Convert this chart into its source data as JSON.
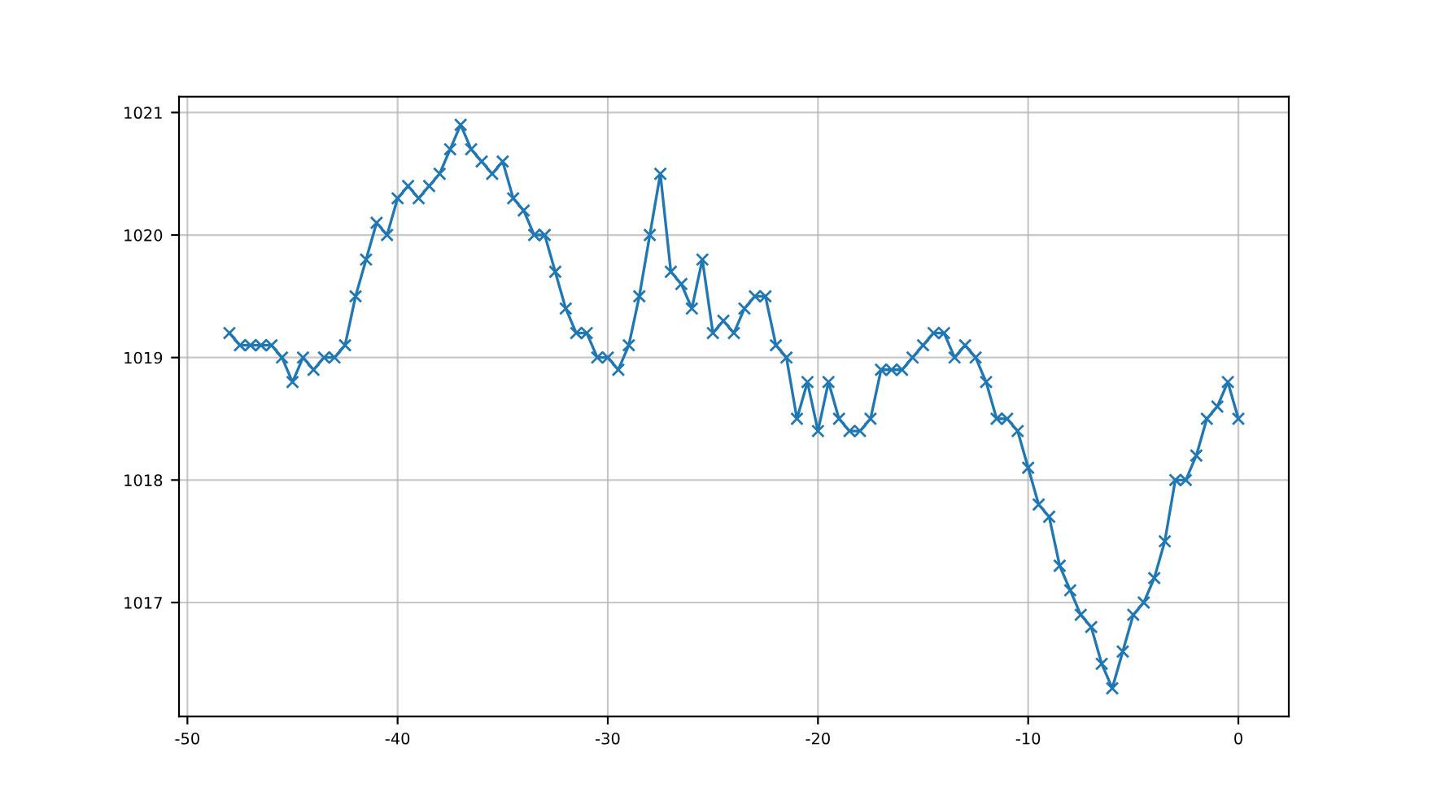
{
  "chart_data": {
    "type": "line",
    "x": [
      -48,
      -47.5,
      -47,
      -46.5,
      -46,
      -45.5,
      -45,
      -44.5,
      -44,
      -43.5,
      -43,
      -42.5,
      -42,
      -41.5,
      -41,
      -40.5,
      -40,
      -39.5,
      -39,
      -38.5,
      -38,
      -37.5,
      -37,
      -36.5,
      -36,
      -35.5,
      -35,
      -34.5,
      -34,
      -33.5,
      -33,
      -32.5,
      -32,
      -31.5,
      -31,
      -30.5,
      -30,
      -29.5,
      -29,
      -28.5,
      -28,
      -27.5,
      -27,
      -26.5,
      -26,
      -25.5,
      -25,
      -24.5,
      -24,
      -23.5,
      -23,
      -22.5,
      -22,
      -21.5,
      -21,
      -20.5,
      -20,
      -19.5,
      -19,
      -18.5,
      -18,
      -17.5,
      -17,
      -16.5,
      -16,
      -15.5,
      -15,
      -14.5,
      -14,
      -13.5,
      -13,
      -12.5,
      -12,
      -11.5,
      -11,
      -10.5,
      -10,
      -9.5,
      -9,
      -8.5,
      -8,
      -7.5,
      -7,
      -6.5,
      -6,
      -5.5,
      -5,
      -4.5,
      -4,
      -3.5,
      -3,
      -2.5,
      -2,
      -1.5,
      -1,
      -0.5,
      0
    ],
    "series": [
      {
        "color": "#1f77b4",
        "values": [
          1019.2,
          1019.1,
          1019.1,
          1019.1,
          1019.1,
          1019.0,
          1018.8,
          1019.0,
          1018.9,
          1019.0,
          1019.0,
          1019.1,
          1019.5,
          1019.8,
          1020.1,
          1020.0,
          1020.3,
          1020.4,
          1020.3,
          1020.4,
          1020.5,
          1020.7,
          1020.9,
          1020.7,
          1020.6,
          1020.5,
          1020.6,
          1020.3,
          1020.2,
          1020.0,
          1020.0,
          1019.7,
          1019.4,
          1019.2,
          1019.2,
          1019.0,
          1019.0,
          1018.9,
          1019.1,
          1019.5,
          1020.0,
          1020.5,
          1019.7,
          1019.6,
          1019.4,
          1019.8,
          1019.2,
          1019.3,
          1019.2,
          1019.4,
          1019.5,
          1019.5,
          1019.1,
          1019.0,
          1018.5,
          1018.8,
          1018.4,
          1018.8,
          1018.5,
          1018.4,
          1018.4,
          1018.5,
          1018.9,
          1018.9,
          1018.9,
          1019.0,
          1019.1,
          1019.2,
          1019.2,
          1019.0,
          1019.1,
          1019.0,
          1018.8,
          1018.5,
          1018.5,
          1018.4,
          1018.1,
          1017.8,
          1017.7,
          1017.3,
          1017.1,
          1016.9,
          1016.8,
          1016.5,
          1016.3,
          1016.6,
          1016.9,
          1017.0,
          1017.2,
          1017.5,
          1018.0,
          1018.0,
          1018.2,
          1018.5,
          1018.6,
          1018.8,
          1018.5
        ]
      }
    ],
    "xlim": [
      -50.4,
      2.4
    ],
    "xticks": [
      -50,
      -40,
      -30,
      -20,
      -10,
      0
    ],
    "ylim": [
      1016.07,
      1021.13
    ],
    "yticks": [
      1017,
      1018,
      1019,
      1020,
      1021
    ],
    "grid": true,
    "marker": "cross",
    "line_style": "solid"
  }
}
